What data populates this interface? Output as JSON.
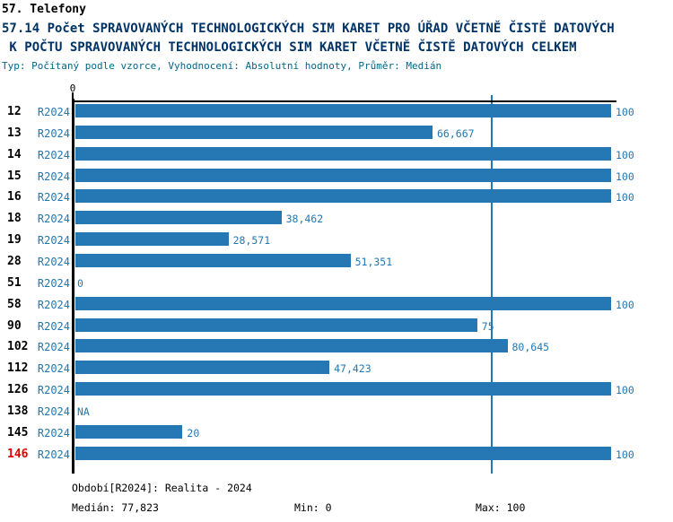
{
  "header": {
    "section": "57. Telefony",
    "title_line1": "57.14 Počet SPRAVOVANÝCH TECHNOLOGICKÝCH SIM KARET PRO ÚŘAD VČETNĚ ČISTĚ DATOVÝCH",
    "title_line2": " K POČTU SPRAVOVANÝCH TECHNOLOGICKÝCH SIM KARET VČETNĚ ČISTĚ DATOVÝCH CELKEM",
    "subtitle": "Typ: Počítaný podle vzorce, Vyhodnocení: Absolutní hodnoty, Průměr: Medián"
  },
  "chart_data": {
    "type": "bar",
    "orientation": "horizontal",
    "title": "57.14 Počet spravovaných technologických SIM karet pro úřad včetně čistě datových k počtu spravovaných technologických SIM karet včetně čistě datových celkem",
    "xlim": [
      0,
      100
    ],
    "x_axis_zero_label": "0",
    "grid": "median-line-only",
    "median_value": 77.823,
    "series_name": "R2024",
    "rows": [
      {
        "org": "12",
        "period": "R2024",
        "value": 100,
        "label": "100",
        "highlight": false
      },
      {
        "org": "13",
        "period": "R2024",
        "value": 66.667,
        "label": "66,667",
        "highlight": false
      },
      {
        "org": "14",
        "period": "R2024",
        "value": 100,
        "label": "100",
        "highlight": false
      },
      {
        "org": "15",
        "period": "R2024",
        "value": 100,
        "label": "100",
        "highlight": false
      },
      {
        "org": "16",
        "period": "R2024",
        "value": 100,
        "label": "100",
        "highlight": false
      },
      {
        "org": "18",
        "period": "R2024",
        "value": 38.462,
        "label": "38,462",
        "highlight": false
      },
      {
        "org": "19",
        "period": "R2024",
        "value": 28.571,
        "label": "28,571",
        "highlight": false
      },
      {
        "org": "28",
        "period": "R2024",
        "value": 51.351,
        "label": "51,351",
        "highlight": false
      },
      {
        "org": "51",
        "period": "R2024",
        "value": 0,
        "label": "0",
        "highlight": false
      },
      {
        "org": "58",
        "period": "R2024",
        "value": 100,
        "label": "100",
        "highlight": false
      },
      {
        "org": "90",
        "period": "R2024",
        "value": 75,
        "label": "75",
        "highlight": false
      },
      {
        "org": "102",
        "period": "R2024",
        "value": 80.645,
        "label": "80,645",
        "highlight": false
      },
      {
        "org": "112",
        "period": "R2024",
        "value": 47.423,
        "label": "47,423",
        "highlight": false
      },
      {
        "org": "126",
        "period": "R2024",
        "value": 100,
        "label": "100",
        "highlight": false
      },
      {
        "org": "138",
        "period": "R2024",
        "value": null,
        "label": "NA",
        "highlight": false
      },
      {
        "org": "145",
        "period": "R2024",
        "value": 20,
        "label": "20",
        "highlight": false
      },
      {
        "org": "146",
        "period": "R2024",
        "value": 100,
        "label": "100",
        "highlight": true
      }
    ]
  },
  "footer": {
    "period": "Období[R2024]: Realita - 2024",
    "median": "Medián: 77,823",
    "min": "Min: 0",
    "max": "Max: 100"
  },
  "colors": {
    "bar": "#2578B4",
    "blue_text": "#1F77B4",
    "title_navy": "#003366",
    "subtitle_teal": "#006688",
    "highlight_red": "#E00000",
    "axis_black": "#000000"
  }
}
